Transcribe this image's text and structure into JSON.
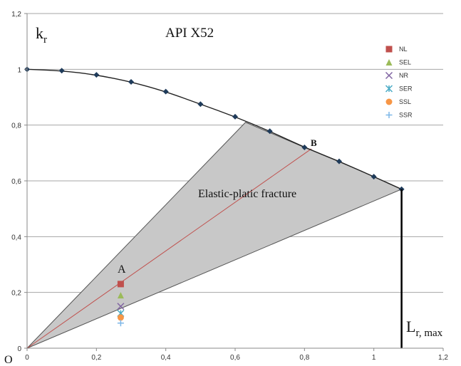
{
  "chart_data": {
    "type": "scatter",
    "title": "API X52",
    "ylabel_base": "k",
    "ylabel_sub": "r",
    "xlabel_base": "L",
    "xlabel_sub": "r, max",
    "origin_label": "O",
    "region_label": "Elastic-platic fracture",
    "point_A_label": "A",
    "point_B_label": "B",
    "xlim": [
      0,
      1.2
    ],
    "ylim": [
      0,
      1.2
    ],
    "x_ticks": [
      0,
      0.2,
      0.4,
      0.6,
      0.8,
      1,
      1.2
    ],
    "y_ticks": [
      0,
      0.2,
      0.4,
      0.6,
      0.8,
      1,
      1.2
    ],
    "x_tick_labels": [
      "0",
      "0,2",
      "0,4",
      "0,6",
      "0,8",
      "1",
      "1,2"
    ],
    "y_tick_labels": [
      "0",
      "0,2",
      "0,4",
      "0,6",
      "0,8",
      "1",
      "1,2"
    ],
    "grid": "horizontal",
    "legend_position": "top-right",
    "failure_curve": {
      "color": "#1f3b5a",
      "x": [
        0,
        0.1,
        0.2,
        0.3,
        0.4,
        0.5,
        0.6,
        0.7,
        0.8,
        0.9,
        1.0,
        1.08
      ],
      "y": [
        1.0,
        0.995,
        0.98,
        0.955,
        0.92,
        0.875,
        0.83,
        0.778,
        0.72,
        0.67,
        0.615,
        0.57
      ]
    },
    "region_polygon": {
      "color": "#c8c8c8",
      "points": [
        [
          0,
          0
        ],
        [
          0.63,
          0.81
        ],
        [
          0.8,
          0.72
        ],
        [
          0.9,
          0.67
        ],
        [
          1.0,
          0.615
        ],
        [
          1.08,
          0.57
        ]
      ]
    },
    "load_line": {
      "color": "#c0504d",
      "from": [
        0,
        0
      ],
      "to": [
        0.82,
        0.715
      ]
    },
    "lr_max": {
      "x": 1.08,
      "y": 0.57,
      "color": "#000000"
    },
    "series": [
      {
        "name": "NL",
        "color": "#c0504d",
        "marker": "square",
        "x": [
          0.27
        ],
        "y": [
          0.23
        ]
      },
      {
        "name": "SEL",
        "color": "#9bbb59",
        "marker": "triangle",
        "x": [
          0.27
        ],
        "y": [
          0.19
        ]
      },
      {
        "name": "NR",
        "color": "#8064a2",
        "marker": "x",
        "x": [
          0.27
        ],
        "y": [
          0.15
        ]
      },
      {
        "name": "SER",
        "color": "#4bacc6",
        "marker": "star",
        "x": [
          0.27
        ],
        "y": [
          0.125
        ]
      },
      {
        "name": "SSL",
        "color": "#f79646",
        "marker": "circle",
        "x": [
          0.27
        ],
        "y": [
          0.11
        ]
      },
      {
        "name": "SSR",
        "color": "#7db7e8",
        "marker": "plus",
        "x": [
          0.27
        ],
        "y": [
          0.09
        ]
      }
    ]
  }
}
